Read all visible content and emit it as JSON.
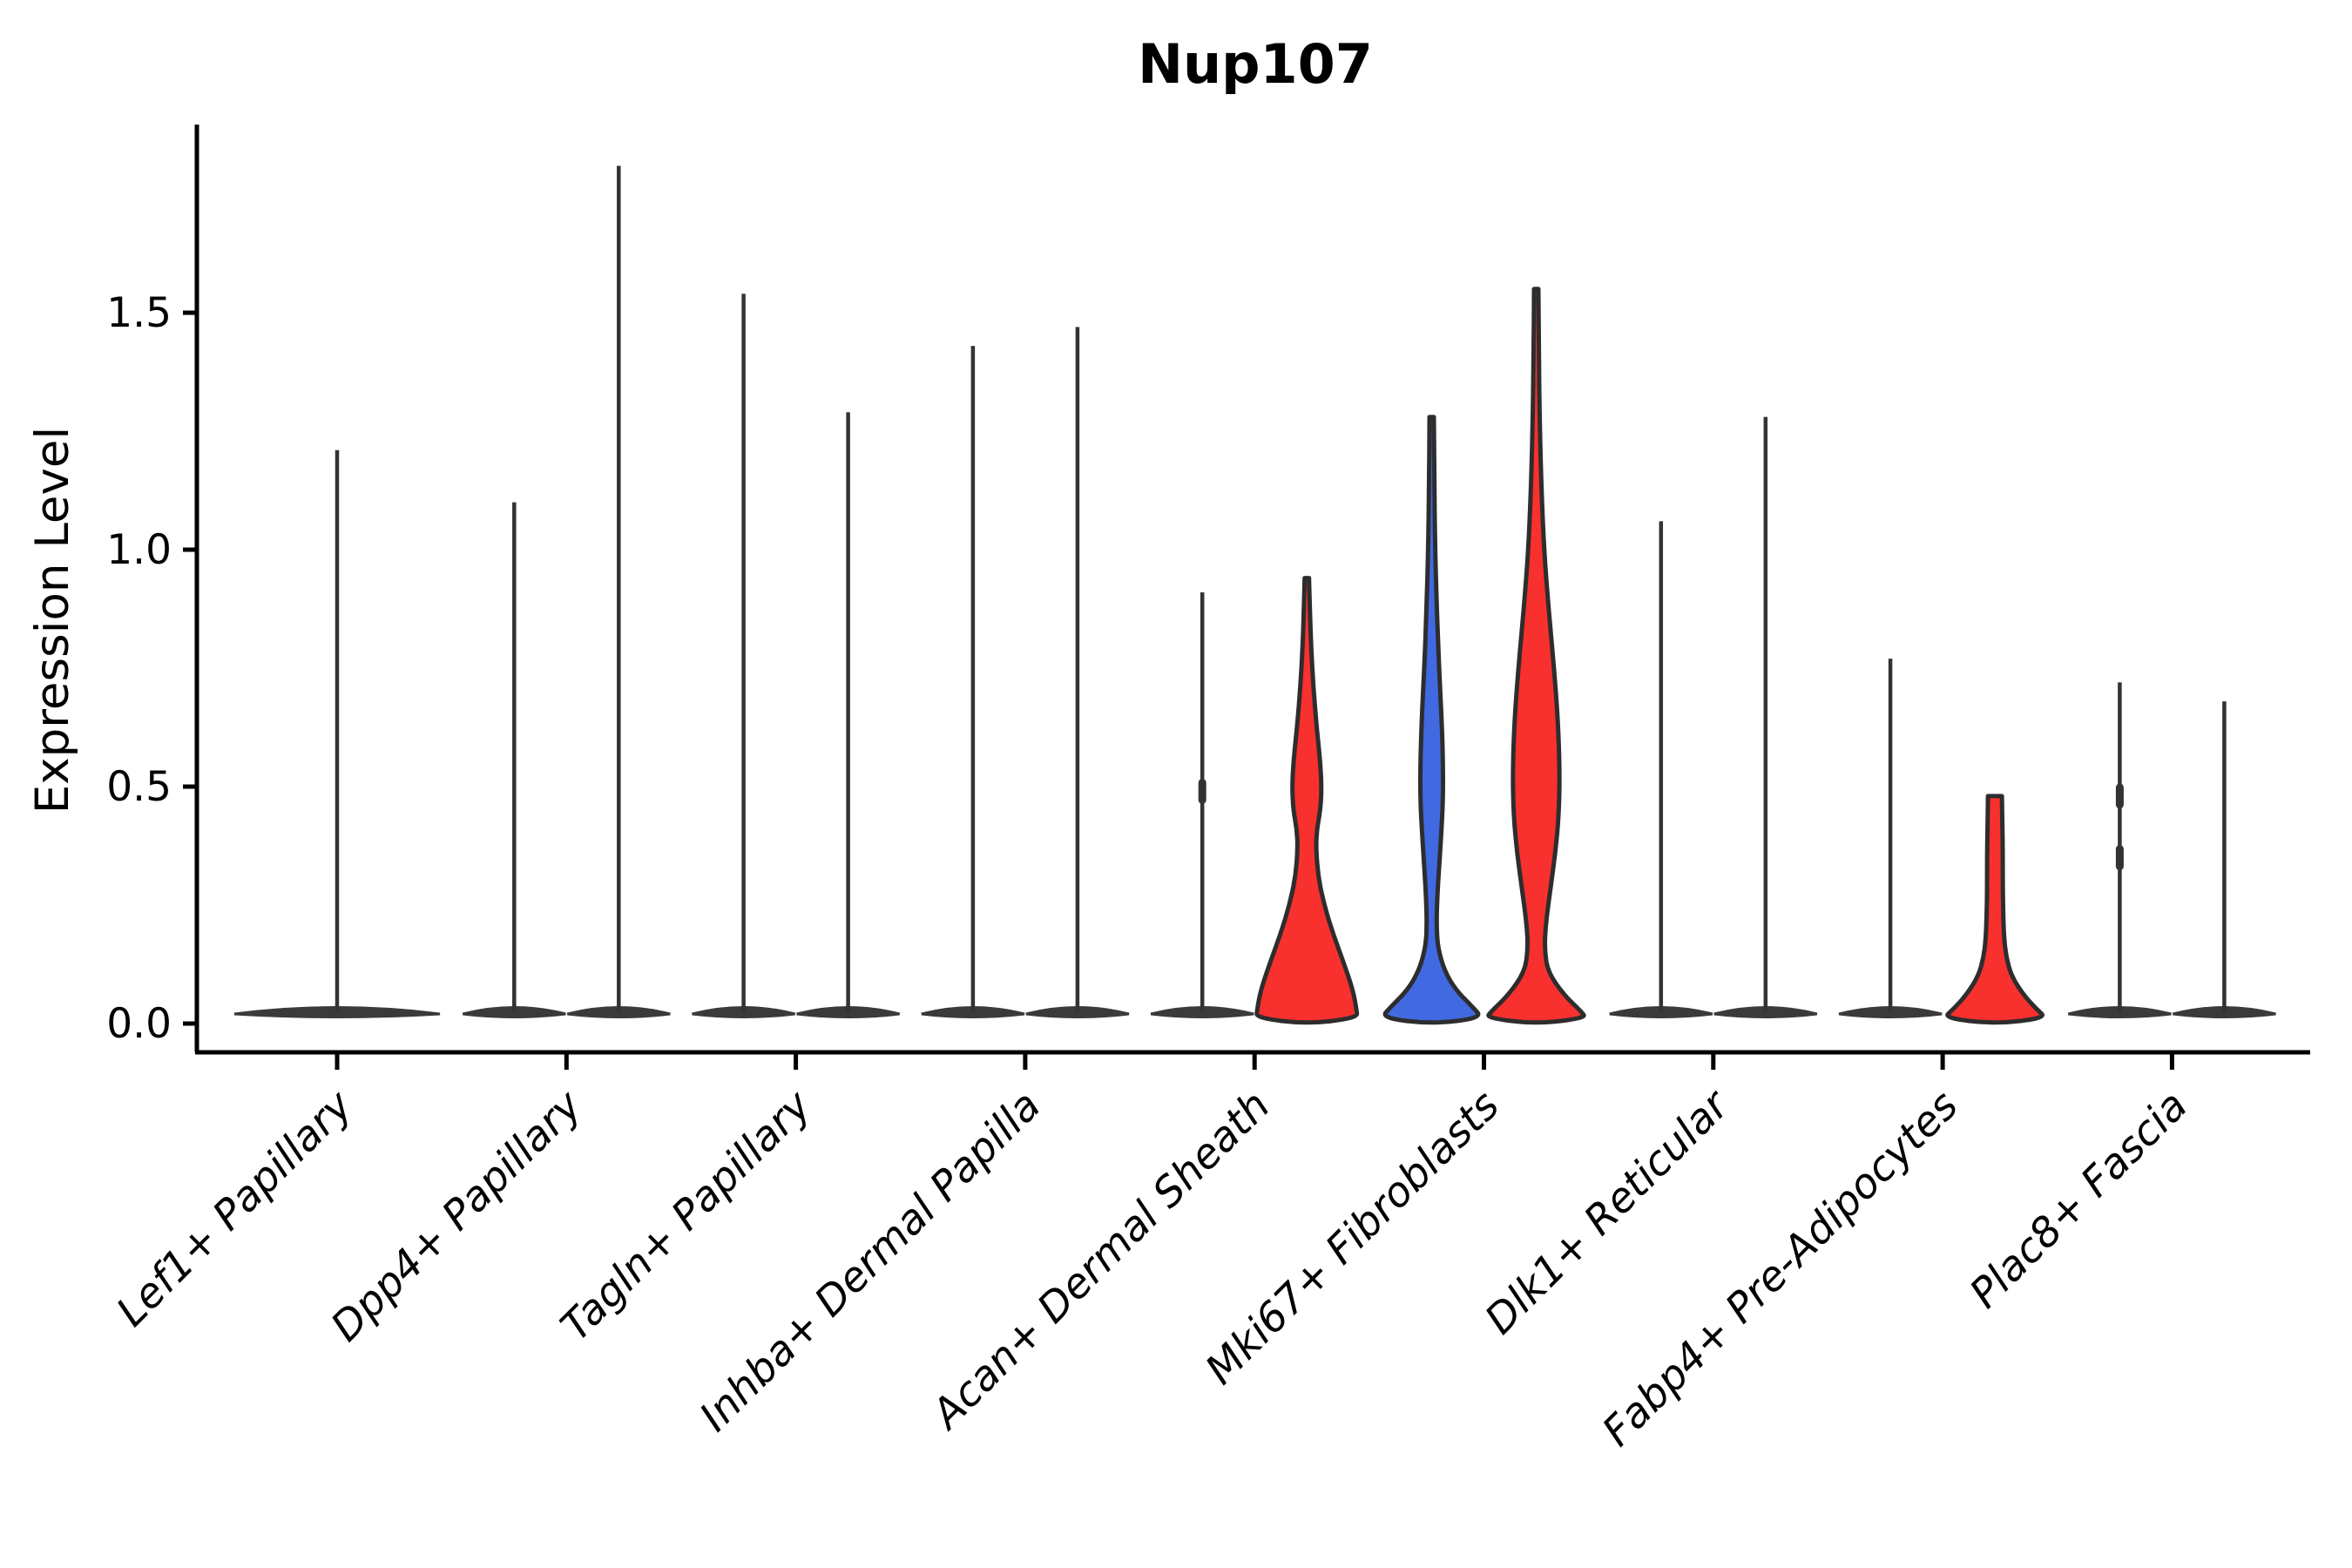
{
  "chart_data": {
    "type": "violin",
    "title": "Nup107",
    "ylabel": "Expression Level",
    "xlabel": "",
    "grid": false,
    "legend": "none",
    "ylim": [
      0,
      1.9
    ],
    "yticks": [
      {
        "label": "0.0",
        "value": 0.0
      },
      {
        "label": "0.5",
        "value": 0.5
      },
      {
        "label": "1.0",
        "value": 1.0
      },
      {
        "label": "1.5",
        "value": 1.5
      }
    ],
    "colors": {
      "red": "#F8302E",
      "blue": "#4169E1",
      "spike_line": "#333333",
      "base_lens": "#3a3a3a",
      "violin_outline": "#2d2d2d",
      "axis": "#000000"
    },
    "categories": [
      "Lef1+ Papillary",
      "Dpp4+ Papillary",
      "Tagln+ Papillary",
      "Inhba+ Dermal Papilla",
      "Acan+ Dermal Sheath",
      "Mki67+ Fibroblasts",
      "Dlk1+ Reticular",
      "Fabp4+ Pre-Adipocytes",
      "Plac8+ Fascia"
    ],
    "violins": [
      [
        {
          "group": "single",
          "kind": "spike",
          "offset": 0,
          "max": 1.21,
          "base_halfwidth": 118,
          "nubs": []
        }
      ],
      [
        {
          "group": "A",
          "kind": "spike",
          "offset": -60,
          "max": 1.1,
          "base_halfwidth": 59,
          "nubs": []
        },
        {
          "group": "B",
          "kind": "spike",
          "offset": 60,
          "max": 1.81,
          "base_halfwidth": 59,
          "nubs": []
        }
      ],
      [
        {
          "group": "A",
          "kind": "spike",
          "offset": -60,
          "max": 1.54,
          "base_halfwidth": 59,
          "nubs": []
        },
        {
          "group": "B",
          "kind": "spike",
          "offset": 60,
          "max": 1.29,
          "base_halfwidth": 59,
          "nubs": []
        }
      ],
      [
        {
          "group": "A",
          "kind": "spike",
          "offset": -60,
          "max": 1.43,
          "base_halfwidth": 59,
          "nubs": []
        },
        {
          "group": "B",
          "kind": "spike",
          "offset": 60,
          "max": 1.47,
          "base_halfwidth": 59,
          "nubs": []
        }
      ],
      [
        {
          "group": "A",
          "kind": "spike",
          "offset": -60,
          "max": 0.91,
          "base_halfwidth": 59,
          "nubs": [
            0.49
          ]
        },
        {
          "group": "B",
          "kind": "violin",
          "offset": 60,
          "max": 0.94,
          "color": "red",
          "profile": [
            [
              0.94,
              2.5
            ],
            [
              0.87,
              3.5
            ],
            [
              0.79,
              5
            ],
            [
              0.71,
              7.5
            ],
            [
              0.63,
              11
            ],
            [
              0.56,
              15
            ],
            [
              0.5,
              17
            ],
            [
              0.45,
              15.5
            ],
            [
              0.41,
              11.5
            ],
            [
              0.37,
              10.5
            ],
            [
              0.31,
              13
            ],
            [
              0.25,
              20
            ],
            [
              0.19,
              30
            ],
            [
              0.13,
              42
            ],
            [
              0.07,
              53
            ],
            [
              0.03,
              57
            ],
            [
              0.012,
              58
            ]
          ]
        }
      ],
      [
        {
          "group": "A",
          "kind": "violin",
          "offset": -60,
          "max": 1.28,
          "color": "blue",
          "profile": [
            [
              1.28,
              2.5
            ],
            [
              1.14,
              3
            ],
            [
              1.0,
              4
            ],
            [
              0.87,
              6
            ],
            [
              0.75,
              8.5
            ],
            [
              0.64,
              11.5
            ],
            [
              0.55,
              13
            ],
            [
              0.47,
              13
            ],
            [
              0.4,
              11
            ],
            [
              0.33,
              8.5
            ],
            [
              0.27,
              6.5
            ],
            [
              0.21,
              5.5
            ],
            [
              0.16,
              7
            ],
            [
              0.11,
              15
            ],
            [
              0.07,
              28
            ],
            [
              0.035,
              47
            ],
            [
              0.012,
              58
            ]
          ]
        },
        {
          "group": "B",
          "kind": "violin",
          "offset": 60,
          "max": 1.55,
          "color": "red",
          "profile": [
            [
              1.55,
              2.5
            ],
            [
              1.41,
              3
            ],
            [
              1.27,
              4
            ],
            [
              1.13,
              6
            ],
            [
              1.0,
              9
            ],
            [
              0.88,
              14
            ],
            [
              0.76,
              20
            ],
            [
              0.64,
              25
            ],
            [
              0.53,
              27
            ],
            [
              0.44,
              26
            ],
            [
              0.36,
              22
            ],
            [
              0.28,
              16
            ],
            [
              0.21,
              11
            ],
            [
              0.16,
              9.5
            ],
            [
              0.11,
              13
            ],
            [
              0.06,
              32
            ],
            [
              0.025,
              52
            ],
            [
              0.012,
              57
            ]
          ]
        }
      ],
      [
        {
          "group": "A",
          "kind": "spike",
          "offset": -60,
          "max": 1.06,
          "base_halfwidth": 59,
          "nubs": []
        },
        {
          "group": "B",
          "kind": "spike",
          "offset": 60,
          "max": 1.28,
          "base_halfwidth": 59,
          "nubs": []
        }
      ],
      [
        {
          "group": "A",
          "kind": "spike",
          "offset": -60,
          "max": 0.77,
          "base_halfwidth": 59,
          "nubs": []
        },
        {
          "group": "B",
          "kind": "violin",
          "offset": 60,
          "max": 0.48,
          "color": "red",
          "flat_top": true,
          "profile": [
            [
              0.48,
              8
            ],
            [
              0.42,
              8.5
            ],
            [
              0.36,
              9
            ],
            [
              0.29,
              9
            ],
            [
              0.23,
              9.5
            ],
            [
              0.18,
              10.5
            ],
            [
              0.14,
              13
            ],
            [
              0.1,
              19
            ],
            [
              0.06,
              33
            ],
            [
              0.03,
              48
            ],
            [
              0.012,
              59
            ]
          ]
        }
      ],
      [
        {
          "group": "A",
          "kind": "spike",
          "offset": -60,
          "max": 0.72,
          "base_halfwidth": 59,
          "nubs": [
            0.48,
            0.35
          ]
        },
        {
          "group": "B",
          "kind": "spike",
          "offset": 60,
          "max": 0.68,
          "base_halfwidth": 59,
          "nubs": []
        }
      ]
    ]
  }
}
